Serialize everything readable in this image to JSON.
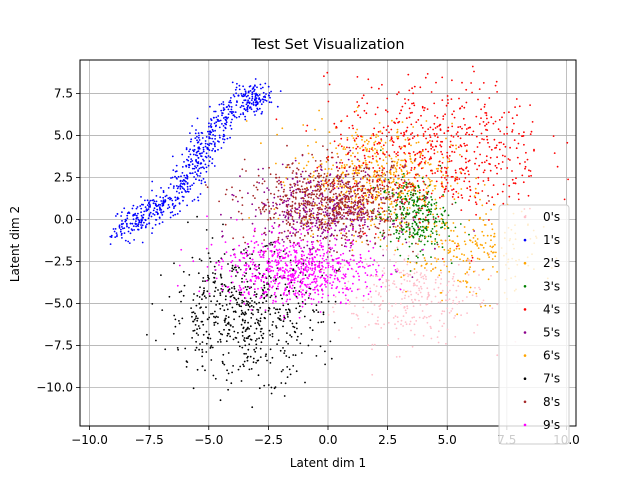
{
  "chart_data": {
    "type": "scatter",
    "title": "Test Set Visualization",
    "xlabel": "Latent dim 1",
    "ylabel": "Latent dim 2",
    "xlim": [
      -10.4,
      10.4
    ],
    "ylim": [
      -12.3,
      9.5
    ],
    "xticks": [
      -10.0,
      -7.5,
      -5.0,
      -2.5,
      0.0,
      2.5,
      5.0,
      7.5,
      10.0
    ],
    "xtick_labels": [
      "−10.0",
      "−7.5",
      "−5.0",
      "−2.5",
      "0.0",
      "2.5",
      "5.0",
      "7.5",
      "10.0"
    ],
    "yticks": [
      -10.0,
      -7.5,
      -5.0,
      -2.5,
      0.0,
      2.5,
      5.0,
      7.5
    ],
    "ytick_labels": [
      "−10.0",
      "−7.5",
      "−5.0",
      "−2.5",
      "0.0",
      "2.5",
      "5.0",
      "7.5"
    ],
    "grid": true,
    "legend_position": "lower-right",
    "series": [
      {
        "name": "0's",
        "color": "#ffc0cb",
        "center": [
          3.5,
          -4.5
        ],
        "spread": [
          1.6,
          1.4
        ],
        "count": 320
      },
      {
        "name": "1's",
        "color": "#0000ff",
        "path": [
          [
            -8.8,
            -0.8
          ],
          [
            -7.5,
            0.3
          ],
          [
            -6.2,
            1.8
          ],
          [
            -5.5,
            3.5
          ],
          [
            -4.8,
            5.5
          ],
          [
            -3.6,
            7.0
          ],
          [
            -2.7,
            7.4
          ]
        ],
        "spread": [
          0.35,
          0.45
        ],
        "count": 700
      },
      {
        "name": "2's",
        "color": "#ffa500",
        "center": [
          2.0,
          2.5
        ],
        "spread": [
          1.6,
          1.6
        ],
        "count": 600
      },
      {
        "name": "3's",
        "color": "#008000",
        "center": [
          3.6,
          0.2
        ],
        "spread": [
          0.7,
          1.1
        ],
        "count": 300
      },
      {
        "name": "4's",
        "color": "#ff0000",
        "center": [
          4.6,
          4.1
        ],
        "spread": [
          2.3,
          2.1
        ],
        "count": 650
      },
      {
        "name": "5's",
        "color": "#8b008b",
        "center": [
          -0.3,
          0.5
        ],
        "spread": [
          1.5,
          1.3
        ],
        "count": 450
      },
      {
        "name": "6's",
        "color": "#ffa500",
        "center": [
          6.0,
          -2.0
        ],
        "spread": [
          1.4,
          1.3
        ],
        "count": 220
      },
      {
        "name": "7's",
        "color": "#000000",
        "center": [
          -3.5,
          -5.6
        ],
        "spread": [
          1.6,
          1.9
        ],
        "count": 620
      },
      {
        "name": "8's",
        "color": "#a52a2a",
        "center": [
          0.3,
          1.0
        ],
        "spread": [
          1.8,
          1.2
        ],
        "count": 750
      },
      {
        "name": "9's",
        "color": "#ff00ff",
        "center": [
          -1.3,
          -3.0
        ],
        "spread": [
          1.6,
          1.0
        ],
        "count": 720
      }
    ]
  }
}
